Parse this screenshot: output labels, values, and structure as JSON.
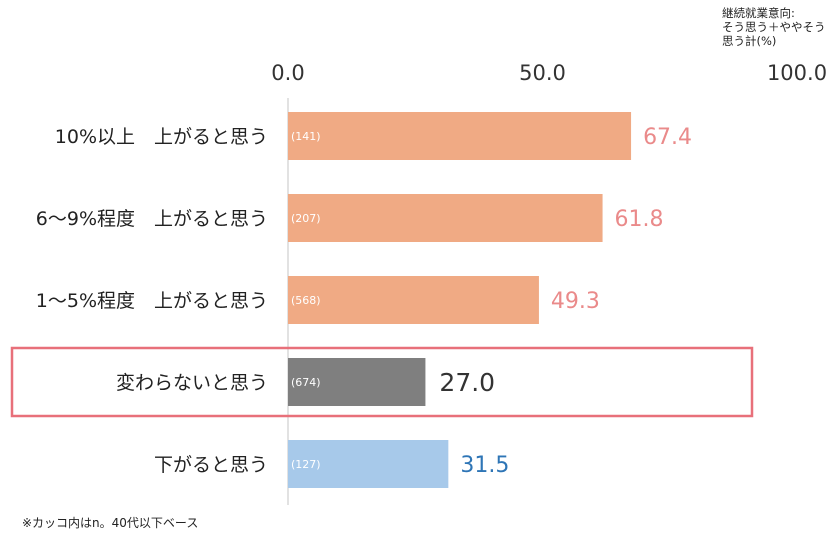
{
  "chart_data": {
    "type": "bar",
    "orientation": "horizontal",
    "title": "継続就業意向:\nそう思う＋ややそう\n思う計(%)",
    "categories": [
      "10%以上　上がると思う",
      "6～9%程度　上がると思う",
      "1～5%程度　上がると思う",
      "変わらないと思う",
      "下がると思う"
    ],
    "values": [
      67.4,
      61.8,
      49.3,
      27.0,
      31.5
    ],
    "value_labels": [
      "67.4",
      "61.8",
      "49.3",
      "27.0",
      "31.5"
    ],
    "n_labels": [
      "(141)",
      "(207)",
      "(568)",
      "(674)",
      "(127)"
    ],
    "bar_colors": [
      "#f0aa84",
      "#f0aa84",
      "#f0aa84",
      "#7f7f7f",
      "#a7c9ea"
    ],
    "value_label_colors": [
      "#ea8a8a",
      "#ea8a8a",
      "#ea8a8a",
      "#333333",
      "#2e75b6"
    ],
    "highlighted_category": "変わらないと思う",
    "highlight_color": "#e8707a",
    "xlim": [
      0,
      100
    ],
    "xticks": [
      "0.0",
      "50.0",
      "100.0"
    ],
    "xtick_values": [
      0,
      50,
      100
    ],
    "footnote": "※カッコ内はn。40代以下ベース"
  }
}
